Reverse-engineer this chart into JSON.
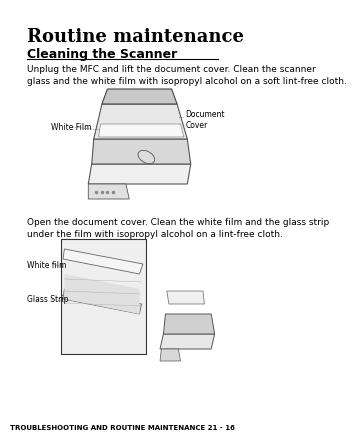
{
  "bg_color": "#ffffff",
  "page_width": 3.0,
  "page_height": 4.25,
  "title": "Routine maintenance",
  "subtitle": "Cleaning the Scanner",
  "para1": "Unplug the MFC and lift the document cover. Clean the scanner\nglass and the white film with isopropyl alcohol on a soft lint-free cloth.",
  "para2": "Open the document cover. Clean the white film and the glass strip\nunder the film with isopropyl alcohol on a lint-free cloth.",
  "footer": "TROUBLESHOOTING AND ROUTINE MAINTENANCE 21 - 16",
  "label_white_film_1": "White Film",
  "label_doc_cover": "Document\nCover",
  "label_white_film_2": "White film",
  "label_glass_strip": "Glass Strip",
  "title_fontsize": 13,
  "subtitle_fontsize": 9,
  "body_fontsize": 6.5,
  "label_fontsize": 5.5,
  "footer_fontsize": 5.0
}
